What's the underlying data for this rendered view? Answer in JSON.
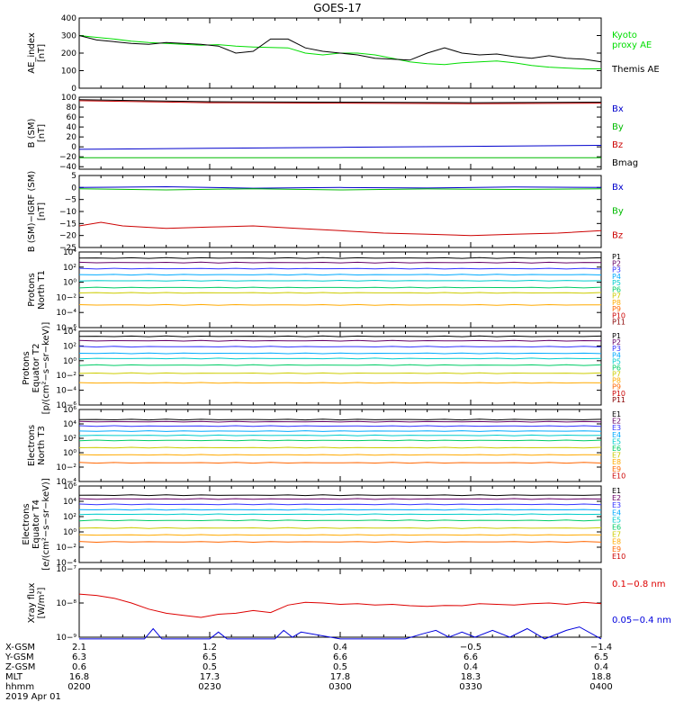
{
  "title": "GOES-17",
  "chart_data": [
    {
      "type": "line",
      "ylabel": "AE_index\n[nT]",
      "ylim": [
        0,
        400
      ],
      "yscale": "linear",
      "yticks": [
        "0",
        "100",
        "200",
        "300",
        "400"
      ],
      "legend_placement": "right",
      "series": [
        {
          "name": "Kyoto\nproxy AE",
          "color": "#00dd00",
          "x": [
            0,
            4,
            8,
            12,
            16,
            20,
            24,
            28,
            32,
            36,
            40,
            44,
            48,
            52,
            56,
            60,
            64,
            68,
            72,
            76,
            80,
            84,
            88,
            92,
            96,
            100,
            104,
            108,
            112,
            116,
            120
          ],
          "y": [
            300,
            290,
            280,
            268,
            260,
            255,
            250,
            245,
            248,
            240,
            235,
            232,
            230,
            200,
            190,
            200,
            200,
            190,
            170,
            150,
            140,
            135,
            145,
            150,
            155,
            145,
            130,
            120,
            115,
            110,
            110
          ]
        },
        {
          "name": "Themis AE",
          "color": "#000000",
          "x": [
            0,
            4,
            8,
            12,
            16,
            20,
            24,
            28,
            32,
            36,
            40,
            44,
            48,
            52,
            56,
            60,
            64,
            68,
            72,
            76,
            80,
            84,
            88,
            92,
            96,
            100,
            104,
            108,
            112,
            116,
            120
          ],
          "y": [
            300,
            275,
            265,
            255,
            250,
            260,
            255,
            250,
            240,
            200,
            210,
            280,
            280,
            230,
            210,
            200,
            190,
            170,
            165,
            160,
            200,
            230,
            200,
            190,
            195,
            180,
            170,
            185,
            170,
            165,
            150
          ]
        }
      ]
    },
    {
      "type": "line",
      "ylabel": "B (SM)\n[nT]",
      "ylim": [
        -45,
        100
      ],
      "yscale": "linear",
      "yticks": [
        "−40",
        "−20",
        "0",
        "20",
        "40",
        "60",
        "80",
        "100"
      ],
      "series": [
        {
          "name": "Bx",
          "color": "#0000cc",
          "x": [
            0,
            30,
            60,
            90,
            120
          ],
          "y": [
            -5,
            -3,
            -1,
            1,
            3
          ]
        },
        {
          "name": "By",
          "color": "#00bb00",
          "x": [
            0,
            30,
            60,
            90,
            120
          ],
          "y": [
            -22,
            -22,
            -22,
            -22,
            -22
          ]
        },
        {
          "name": "Bz",
          "color": "#cc0000",
          "x": [
            0,
            30,
            60,
            90,
            120
          ],
          "y": [
            93,
            89,
            88,
            87,
            88
          ]
        },
        {
          "name": "Bmag",
          "color": "#000000",
          "x": [
            0,
            30,
            60,
            90,
            120
          ],
          "y": [
            95,
            91,
            90,
            89,
            90
          ]
        }
      ]
    },
    {
      "type": "line",
      "ylabel": "B (SM)−IGRF (SM)\n[nT]",
      "ylim": [
        -25,
        5
      ],
      "yscale": "linear",
      "yticks": [
        "−25",
        "−20",
        "−15",
        "−10",
        "−5",
        "0",
        "5"
      ],
      "series": [
        {
          "name": "Bx",
          "color": "#0000cc",
          "x": [
            0,
            20,
            40,
            60,
            80,
            100,
            120
          ],
          "y": [
            0,
            0.3,
            -0.3,
            0,
            -0.2,
            0.2,
            0
          ]
        },
        {
          "name": "By",
          "color": "#00bb00",
          "x": [
            0,
            20,
            40,
            60,
            80,
            100,
            120
          ],
          "y": [
            -0.5,
            -1,
            -0.5,
            -1,
            -0.6,
            -0.8,
            -0.5
          ]
        },
        {
          "name": "Bz",
          "color": "#cc0000",
          "x": [
            0,
            5,
            10,
            20,
            30,
            40,
            50,
            60,
            70,
            80,
            90,
            100,
            110,
            120
          ],
          "y": [
            -16,
            -14.5,
            -16,
            -17,
            -16.5,
            -16,
            -17,
            -18,
            -19,
            -19.5,
            -20,
            -19.5,
            -19,
            -18
          ]
        }
      ]
    },
    {
      "type": "line",
      "ylabel": "Protons\nNorth T1",
      "ylim": [
        -6,
        4
      ],
      "yscale": "log",
      "yticks": [
        "10−⁶",
        "10−⁴",
        "10−²",
        "10⁰",
        "10²",
        "10⁴"
      ],
      "series_labels": [
        "P1",
        "P2",
        "P3",
        "P4",
        "P5",
        "P6",
        "P7",
        "P8",
        "P9",
        "P10",
        "P11"
      ],
      "series_colors": [
        "#000000",
        "#660066",
        "#3333ff",
        "#00aaff",
        "#00cccc",
        "#00cc66",
        "#cccc00",
        "#ffaa00",
        "#ff6600",
        "#cc0000",
        "#880000"
      ],
      "levels": [
        3.2,
        2.6,
        1.8,
        1.0,
        0.2,
        -0.7,
        -1.4,
        -3.0,
        null,
        null,
        null
      ]
    },
    {
      "type": "line",
      "ylabel": "Protons\nEquator T2\n[p/(cm²−s−sr−keV)]",
      "ylim": [
        -6,
        4
      ],
      "yscale": "log",
      "yticks": [
        "10−⁶",
        "10−⁴",
        "10−²",
        "10⁰",
        "10²",
        "10⁴"
      ],
      "series_labels": [
        "P1",
        "P2",
        "P3",
        "P4",
        "P5",
        "P6",
        "P7",
        "P8",
        "P9",
        "P10",
        "P11"
      ],
      "series_colors": [
        "#000000",
        "#660066",
        "#3333ff",
        "#00aaff",
        "#00cccc",
        "#00cc66",
        "#cccc00",
        "#ffaa00",
        "#ff6600",
        "#cc0000",
        "#880000"
      ],
      "levels": [
        3.3,
        2.7,
        1.9,
        1.0,
        0.3,
        -0.6,
        -1.7,
        -3.0,
        null,
        null,
        null
      ]
    },
    {
      "type": "line",
      "ylabel": "Electrons\nNorth T3",
      "ylim": [
        -4,
        6
      ],
      "yscale": "log",
      "yticks": [
        "10−⁴",
        "10−²",
        "10⁰",
        "10²",
        "10⁴",
        "10⁶"
      ],
      "series_labels": [
        "E1",
        "E2",
        "E3",
        "E4",
        "E5",
        "E6",
        "E7",
        "E8",
        "E9",
        "E10"
      ],
      "series_colors": [
        "#000000",
        "#660066",
        "#3333ff",
        "#00aaff",
        "#00cccc",
        "#00cc66",
        "#cccc00",
        "#ffaa00",
        "#ff6600",
        "#cc0000"
      ],
      "levels": [
        4.6,
        4.3,
        3.7,
        3.0,
        2.4,
        1.7,
        0.7,
        -0.3,
        -1.4,
        null
      ]
    },
    {
      "type": "line",
      "ylabel": "Electrons\nEquator T4\n[e/(cm²−s−sr−keV)]",
      "ylim": [
        -4,
        6
      ],
      "yscale": "log",
      "yticks": [
        "10−⁴",
        "10−²",
        "10⁰",
        "10²",
        "10⁴",
        "10⁶"
      ],
      "series_labels": [
        "E1",
        "E2",
        "E3",
        "E4",
        "E5",
        "E6",
        "E7",
        "E8",
        "E9",
        "E10"
      ],
      "series_colors": [
        "#000000",
        "#660066",
        "#3333ff",
        "#00aaff",
        "#00cccc",
        "#00cc66",
        "#cccc00",
        "#ffaa00",
        "#ff6600",
        "#cc0000"
      ],
      "levels": [
        4.8,
        4.3,
        3.6,
        2.9,
        2.3,
        1.5,
        0.5,
        -0.4,
        -1.3,
        null
      ]
    },
    {
      "type": "line",
      "ylabel": "Xray flux\n[W/m²]",
      "ylim": [
        -9,
        -7
      ],
      "yscale": "log",
      "yticks": [
        "10−⁹",
        "10−⁸",
        "10−⁷"
      ],
      "series": [
        {
          "name": "0.1−0.8 nm",
          "color": "#dd0000",
          "x": [
            0,
            4,
            8,
            12,
            16,
            20,
            24,
            28,
            32,
            36,
            40,
            44,
            48,
            52,
            56,
            60,
            64,
            68,
            72,
            76,
            80,
            84,
            88,
            92,
            96,
            100,
            104,
            108,
            112,
            116,
            120
          ],
          "y": [
            -7.74,
            -7.78,
            -7.86,
            -8.0,
            -8.18,
            -8.3,
            -8.36,
            -8.42,
            -8.33,
            -8.3,
            -8.22,
            -8.28,
            -8.06,
            -7.98,
            -8.0,
            -8.04,
            -8.02,
            -8.06,
            -8.04,
            -8.08,
            -8.1,
            -8.07,
            -8.08,
            -8.02,
            -8.04,
            -8.06,
            -8.02,
            -8.0,
            -8.04,
            -7.98,
            -8.02
          ]
        },
        {
          "name": "0.05−0.4 nm",
          "color": "#0000dd",
          "x": [
            0,
            15,
            17,
            19,
            21,
            30,
            32,
            34,
            40,
            45,
            47,
            49,
            51,
            60,
            70,
            75,
            79,
            82,
            85,
            88,
            91,
            95,
            99,
            103,
            107,
            112,
            115,
            120
          ],
          "y": [
            -9.05,
            -9.05,
            -8.75,
            -9.05,
            -9.05,
            -9.05,
            -8.85,
            -9.05,
            -9.05,
            -9.05,
            -8.8,
            -9.0,
            -8.85,
            -9.05,
            -9.05,
            -9.05,
            -8.9,
            -8.8,
            -9.0,
            -8.85,
            -9.0,
            -8.8,
            -9.0,
            -8.75,
            -9.05,
            -8.8,
            -8.7,
            -9.05
          ]
        }
      ]
    }
  ],
  "footer": {
    "rows": [
      {
        "label": "X-GSM",
        "values": [
          "2.1",
          "1.2",
          "0.4",
          "−0.5",
          "−1.4"
        ]
      },
      {
        "label": "Y-GSM",
        "values": [
          "6.3",
          "6.5",
          "6.6",
          "6.6",
          "6.5"
        ]
      },
      {
        "label": "Z-GSM",
        "values": [
          "0.6",
          "0.5",
          "0.5",
          "0.4",
          "0.4"
        ]
      },
      {
        "label": "MLT",
        "values": [
          "16.8",
          "17.3",
          "17.8",
          "18.3",
          "18.8"
        ]
      },
      {
        "label": "hhmm",
        "values": [
          "0200",
          "0230",
          "0300",
          "0330",
          "0400"
        ]
      }
    ],
    "date": "2019 Apr 01"
  }
}
